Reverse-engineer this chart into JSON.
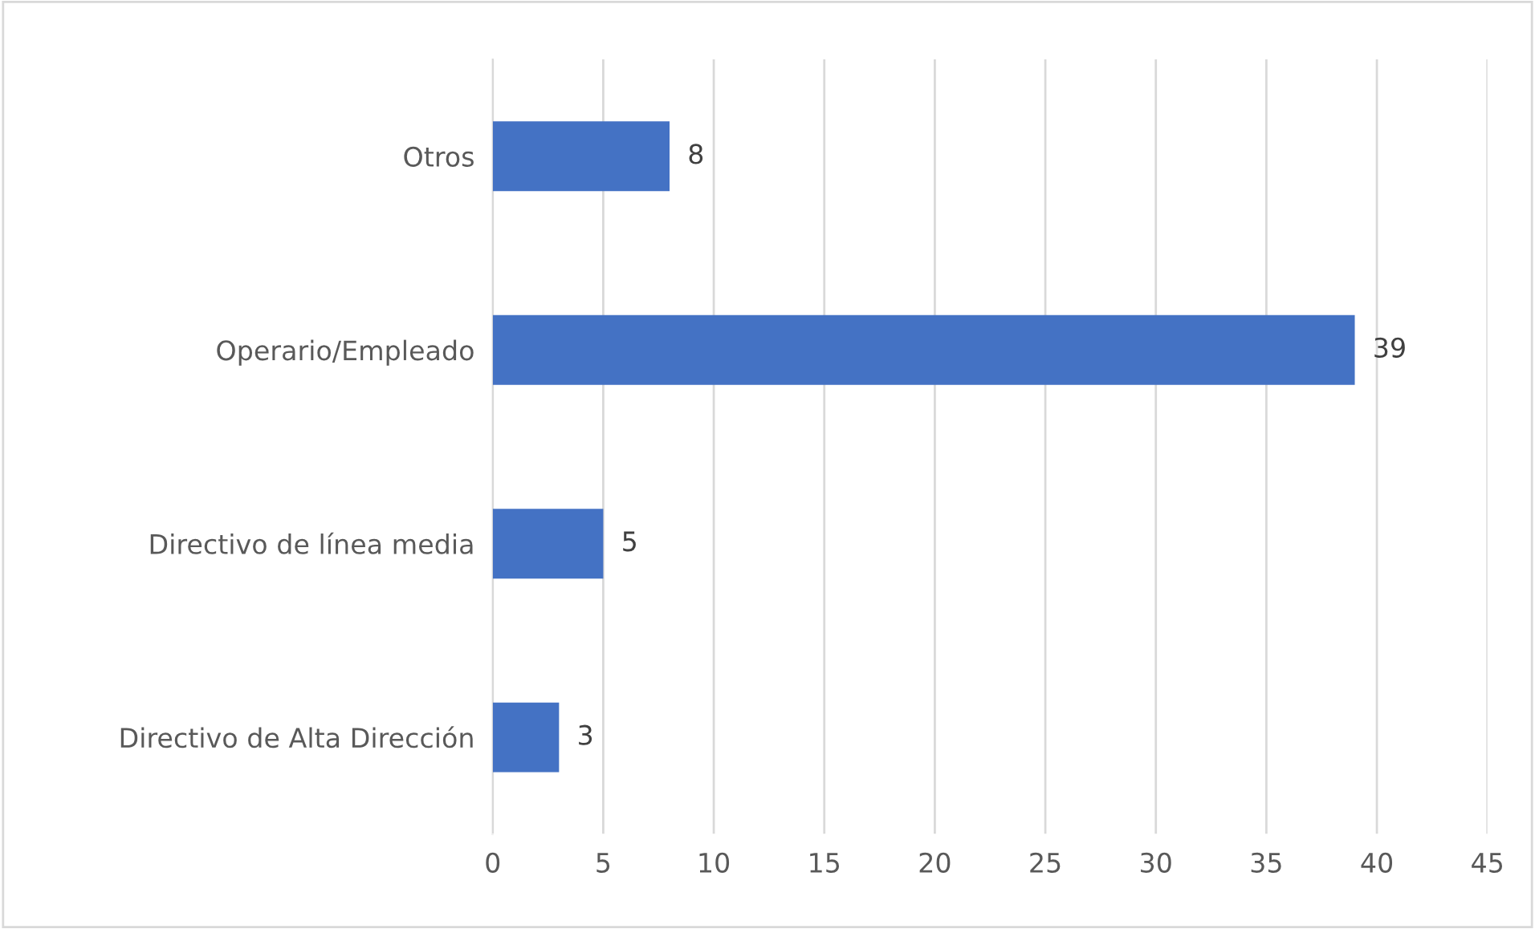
{
  "chart_data": {
    "type": "bar",
    "orientation": "horizontal",
    "categories": [
      "Otros",
      "Operario/Empleado",
      "Directivo de línea media",
      "Directivo de Alta Dirección"
    ],
    "values": [
      8,
      39,
      5,
      3
    ],
    "color": "#4472c4",
    "xlim": [
      0,
      45
    ],
    "xticks": [
      0,
      5,
      10,
      15,
      20,
      25,
      30,
      35,
      40,
      45
    ],
    "grid": "x",
    "data_labels": true
  }
}
